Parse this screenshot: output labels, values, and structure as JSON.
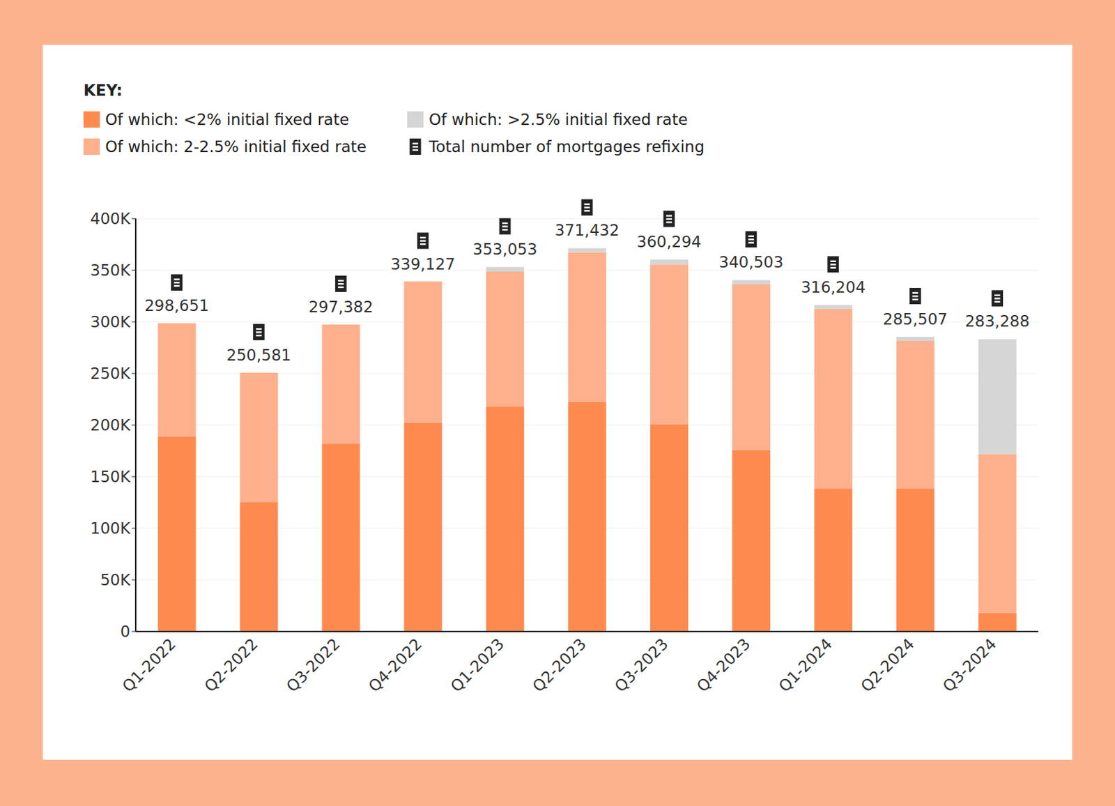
{
  "chart_data": {
    "type": "bar",
    "stacked": true,
    "legend": "top left",
    "legend_title": "KEY:",
    "grid": true,
    "categories": [
      "Q1-2022",
      "Q2-2022",
      "Q3-2022",
      "Q4-2022",
      "Q1-2023",
      "Q2-2023",
      "Q3-2023",
      "Q4-2023",
      "Q1-2024",
      "Q2-2024",
      "Q3-2024"
    ],
    "series": [
      {
        "name": "Of which: <2% initial fixed rate",
        "color": "#FF8A4F",
        "values": [
          189000,
          125500,
          182000,
          202000,
          217700,
          222500,
          201000,
          176000,
          138600,
          138600,
          18000
        ]
      },
      {
        "name": "Of which: 2-2.5% initial fixed rate",
        "color": "#FDB08B",
        "values": [
          109651,
          125081,
          115382,
          137127,
          130953,
          144932,
          154594,
          160203,
          174104,
          142907,
          153988
        ]
      },
      {
        "name": "Of which: >2.5% initial fixed rate",
        "color": "#D5D5D5",
        "values": [
          0,
          0,
          0,
          0,
          4400,
          4000,
          4700,
          4300,
          3500,
          4000,
          111300
        ]
      },
      {
        "name": "Total number of mortgages refixing",
        "type": "label",
        "marker": "receipt",
        "color": "#222222",
        "values": [
          298651,
          250581,
          297382,
          339127,
          353053,
          371432,
          360294,
          340503,
          316204,
          285507,
          283288
        ],
        "value_labels": [
          "298,651",
          "250,581",
          "297,382",
          "339,127",
          "353,053",
          "371,432",
          "360,294",
          "340,503",
          "316,204",
          "285,507",
          "283,288"
        ]
      }
    ],
    "ylim": [
      0,
      400000
    ],
    "yticks": [
      0,
      {
        "value": 50000,
        "label": "50K"
      },
      {
        "value": 100000,
        "label": "100K"
      },
      {
        "value": 150000,
        "label": "150K"
      },
      {
        "value": 200000,
        "label": "200K"
      },
      {
        "value": 250000,
        "label": "250K"
      },
      {
        "value": 300000,
        "label": "300K"
      },
      {
        "value": 350000,
        "label": "350K"
      },
      {
        "value": 400000,
        "label": "400K"
      }
    ]
  }
}
